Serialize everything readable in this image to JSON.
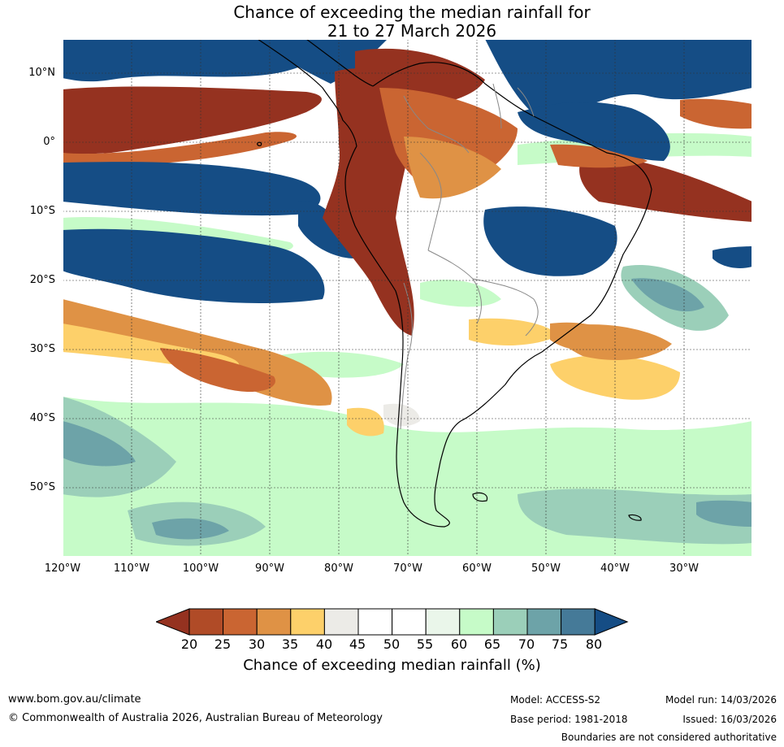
{
  "title": {
    "line1": "Chance of exceeding the median rainfall for",
    "line2": "21 to 27 March 2026"
  },
  "map": {
    "lat_labels": [
      "10°N",
      "0°",
      "10°S",
      "20°S",
      "30°S",
      "40°S",
      "50°S"
    ],
    "lon_labels": [
      "120°W",
      "110°W",
      "100°W",
      "90°W",
      "80°W",
      "70°W",
      "60°W",
      "50°W",
      "40°W",
      "30°W"
    ]
  },
  "colorbar": {
    "ticks": [
      "20",
      "25",
      "30",
      "35",
      "40",
      "45",
      "50",
      "55",
      "60",
      "65",
      "70",
      "75",
      "80"
    ],
    "colors": [
      "#953220",
      "#b04b27",
      "#ca6532",
      "#df9245",
      "#fdd06a",
      "#ecebe7",
      "#ffffff",
      "#ffffff",
      "#eaf6ea",
      "#c6fbc8",
      "#9bcfb9",
      "#6da3a8",
      "#457a98",
      "#154d85"
    ],
    "label": "Chance of exceeding median rainfall (%)"
  },
  "footer": {
    "website": "www.bom.gov.au/climate",
    "copyright": "© Commonwealth of Australia 2026, Australian Bureau of Meteorology",
    "model": "Model: ACCESS-S2",
    "base_period": "Base period: 1981-2018",
    "model_run": "Model run: 14/03/2026",
    "issued": "Issued: 16/03/2026",
    "disclaimer": "Boundaries are not considered authoritative"
  }
}
